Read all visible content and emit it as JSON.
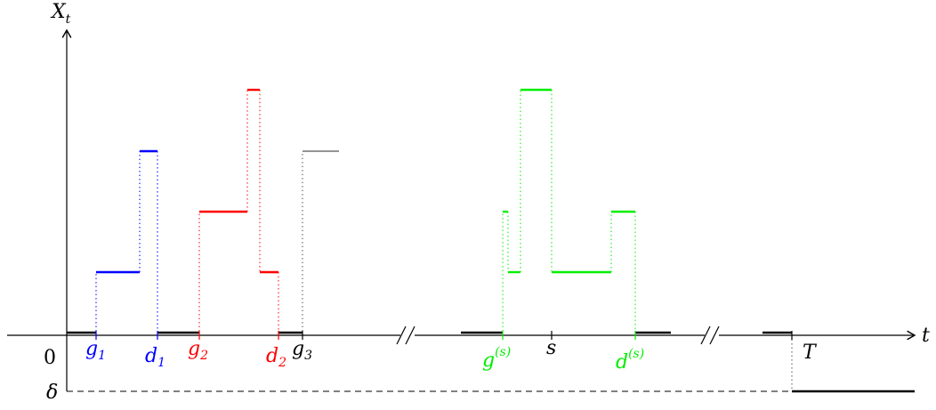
{
  "axes": {
    "y_label_main": "X",
    "y_label_sub": "t",
    "x_label": "t",
    "origin_label": "0",
    "delta_label": "δ"
  },
  "ticks": {
    "g1": {
      "main": "g",
      "sub": "1"
    },
    "d1": {
      "main": "d",
      "sub": "1"
    },
    "g2": {
      "main": "g",
      "sub": "2"
    },
    "d2": {
      "main": "d",
      "sub": "2"
    },
    "g3": {
      "main": "g",
      "sub": "3"
    },
    "gs": {
      "main": "g",
      "sup": "(s)"
    },
    "s": {
      "main": "s"
    },
    "ds": {
      "main": "d",
      "sup": "(s)"
    },
    "T": {
      "main": "T"
    }
  },
  "colors": {
    "excursion_1": "#0000ff",
    "excursion_2": "#ff0000",
    "excursion_s": "#00ee00",
    "axis": "#000000",
    "neutral": "#555555"
  },
  "break_marks": [
    "//",
    "//"
  ]
}
